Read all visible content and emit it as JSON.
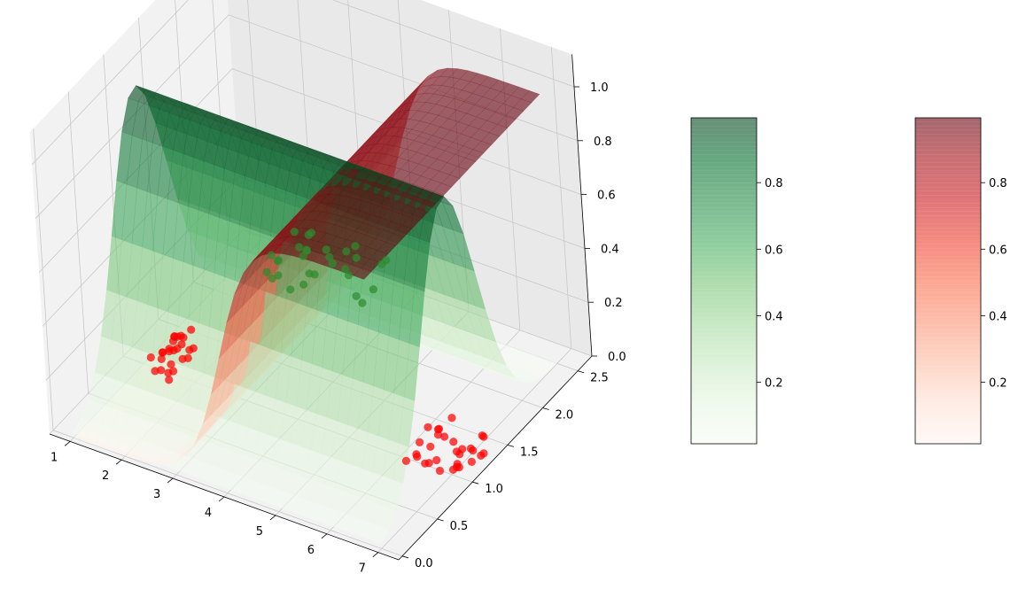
{
  "chart_data": [
    {
      "type": "surface3d",
      "title": "",
      "xlabel": "",
      "ylabel": "",
      "zlabel": "",
      "x_ticks": [
        "1",
        "2",
        "3",
        "4",
        "5",
        "6",
        "7"
      ],
      "y_ticks": [
        "0.0",
        "0.5",
        "1.0",
        "1.5",
        "2.0",
        "2.5"
      ],
      "z_ticks": [
        "0.0",
        "0.2",
        "0.4",
        "0.6",
        "0.8",
        "1.0"
      ],
      "xlim": [
        0.6,
        7.4
      ],
      "ylim": [
        -0.05,
        2.7
      ],
      "zlim": [
        0,
        1
      ],
      "grid": true,
      "series": [
        {
          "kind": "surface",
          "colormap": "Reds",
          "alpha": 0.6,
          "approx_formula": "z = 1 / (1 + exp(-3*(x - 4)))",
          "colors": {
            "low": "#fff5f0",
            "mid": "#fb6a4a",
            "high": "#67000d"
          }
        },
        {
          "kind": "surface",
          "colormap": "Greens",
          "alpha": 0.6,
          "approx_formula": "z = exp(-((y - 1.1)/0.55)^2)",
          "colors": {
            "low": "#f7fcf5",
            "mid": "#74c476",
            "high": "#00441b"
          }
        },
        {
          "kind": "scatter",
          "color": "#ff0000",
          "groups": [
            {
              "x_range": [
                1.0,
                1.6
              ],
              "y": 1.2,
              "z": 0.0,
              "count": 26
            },
            {
              "x_range": [
                6.0,
                7.2
              ],
              "y": 1.2,
              "z": 0.0,
              "count": 30
            }
          ]
        },
        {
          "kind": "scatter",
          "color": "#2e8b2e",
          "groups": [
            {
              "x_range": [
                3.5,
                5.5
              ],
              "y": 1.2,
              "z": 0.55,
              "count": 30
            }
          ]
        }
      ]
    },
    {
      "type": "colorbar",
      "colormap": "Greens",
      "alpha": 0.6,
      "range": [
        0.015,
        0.995
      ],
      "ticks": [
        "0.2",
        "0.4",
        "0.6",
        "0.8"
      ],
      "colors": [
        "#f7fcf5",
        "#e5f5e0",
        "#c7e9c0",
        "#a1d99b",
        "#74c476",
        "#41ab5d",
        "#238b45",
        "#006d2c",
        "#00441b"
      ]
    },
    {
      "type": "colorbar",
      "colormap": "Reds",
      "alpha": 0.6,
      "range": [
        0.015,
        0.995
      ],
      "ticks": [
        "0.2",
        "0.4",
        "0.6",
        "0.8"
      ],
      "colors": [
        "#fff5f0",
        "#fee0d2",
        "#fcbba1",
        "#fc9272",
        "#fb6a4a",
        "#ef3b2c",
        "#cb181d",
        "#a50f15",
        "#67000d"
      ]
    }
  ]
}
